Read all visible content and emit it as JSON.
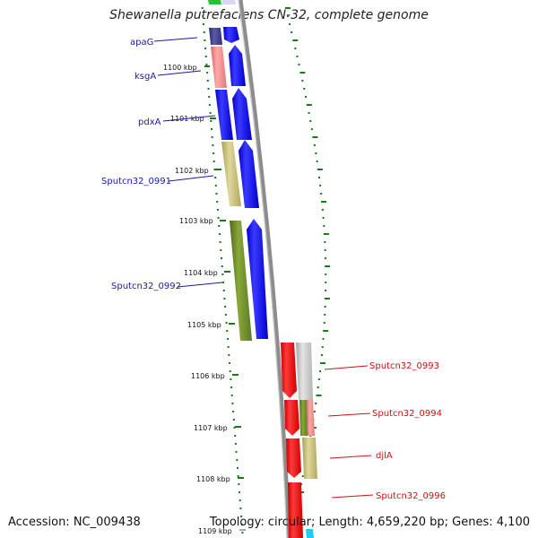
{
  "title": "Shewanella putrefaciens CN-32, complete genome",
  "footer": {
    "accession": "Accession: NC_009438",
    "summary": "Topology: circular; Length: 4,659,220 bp; Genes: 4,100"
  },
  "ruler": {
    "ticks": [
      "1100 kbp",
      "1101 kbp",
      "1102 kbp",
      "1103 kbp",
      "1104 kbp",
      "1105 kbp",
      "1106 kbp",
      "1107 kbp",
      "1108 kbp",
      "1109 kbp"
    ]
  },
  "genes_left": [
    {
      "name": "apaG",
      "color": "#1a1aa8"
    },
    {
      "name": "ksgA",
      "color": "#1a1aa8"
    },
    {
      "name": "pdxA",
      "color": "#1a1aa8"
    },
    {
      "name": "Sputcn32_0991",
      "color": "#1a1aa8"
    },
    {
      "name": "Sputcn32_0992",
      "color": "#1a1aa8"
    }
  ],
  "genes_right": [
    {
      "name": "Sputcn32_0993",
      "color": "#cc1111"
    },
    {
      "name": "Sputcn32_0994",
      "color": "#cc1111"
    },
    {
      "name": "djlA",
      "color": "#cc1111"
    },
    {
      "name": "Sputcn32_0996",
      "color": "#cc1111"
    }
  ],
  "colors": {
    "forward_strand": "#0000ee",
    "reverse_strand": "#ee0000",
    "backbone": "#8c8c8c",
    "tick_green": "#1a7a1a",
    "cog_olive": "#6b8a2a",
    "cog_khaki": "#c8c07a",
    "cog_salmon": "#f08a8a",
    "cog_navy": "#3a3a8a",
    "cog_gray": "#c8c8c8"
  }
}
